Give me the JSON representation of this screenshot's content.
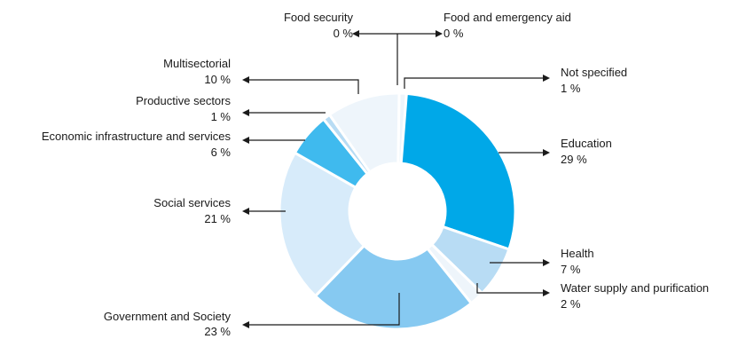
{
  "chart_data": {
    "type": "pie",
    "variant": "donut",
    "title": "",
    "legend": "none (labels with leader lines)",
    "slices": [
      {
        "label": "Not specified",
        "value": 1,
        "value_label": "1 %",
        "color": "#eef5fb"
      },
      {
        "label": "Education",
        "value": 29,
        "value_label": "29 %",
        "color": "#00a8e8"
      },
      {
        "label": "Health",
        "value": 7,
        "value_label": "7 %",
        "color": "#b8dcf4"
      },
      {
        "label": "Water supply and purification",
        "value": 2,
        "value_label": "2 %",
        "color": "#eef5fb"
      },
      {
        "label": "Government and Society",
        "value": 23,
        "value_label": "23 %",
        "color": "#86c9f1"
      },
      {
        "label": "Social services",
        "value": 21,
        "value_label": "21 %",
        "color": "#d7ebfa"
      },
      {
        "label": "Economic infrastructure and services",
        "value": 6,
        "value_label": "6 %",
        "color": "#3fbaee"
      },
      {
        "label": "Productive sectors",
        "value": 1,
        "value_label": "1 %",
        "color": "#b8dcf4"
      },
      {
        "label": "Multisectorial",
        "value": 10,
        "value_label": "10 %",
        "color": "#eef5fb"
      },
      {
        "label": "Food security",
        "value": 0,
        "value_label": "0 %",
        "color": "#ffffff"
      },
      {
        "label": "Food and emergency aid",
        "value": 0,
        "value_label": "0 %",
        "color": "#ffffff"
      }
    ]
  }
}
